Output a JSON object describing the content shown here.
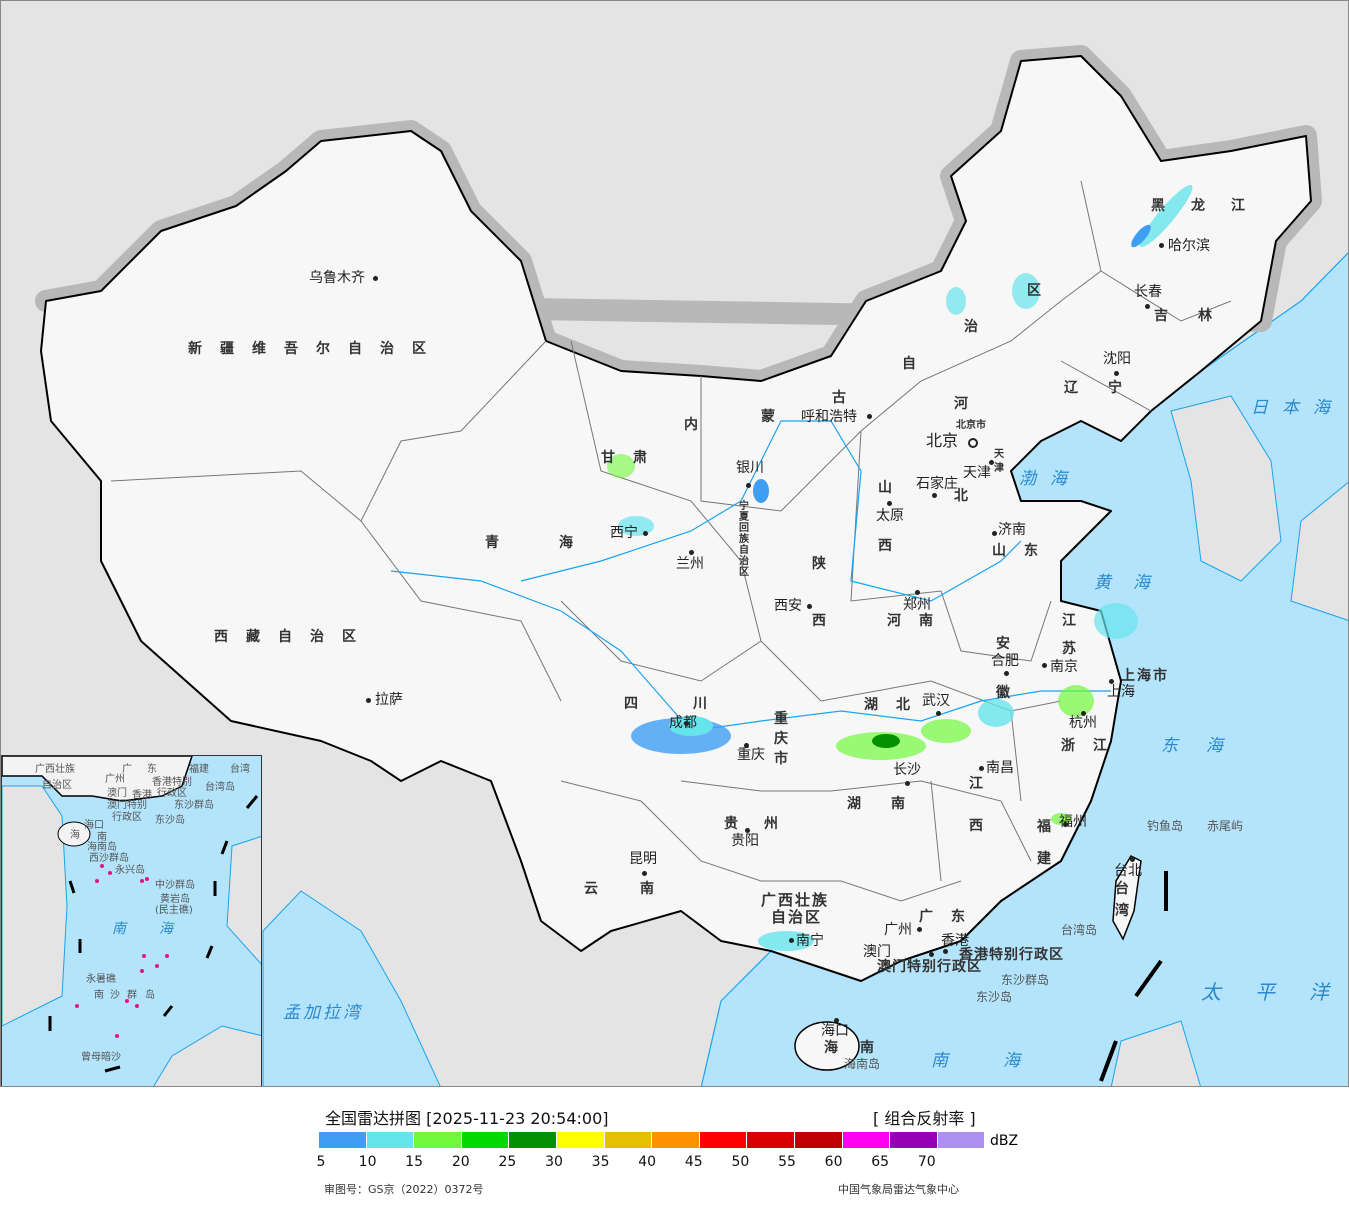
{
  "legend": {
    "title": "全国雷达拼图 [2025-11-23 20:54:00]",
    "product": "[ 组合反射率 ]",
    "unit": "dBZ",
    "colors": [
      "#3f9ef2",
      "#66e4ec",
      "#70f83c",
      "#00d800",
      "#009000",
      "#ffff00",
      "#e6c000",
      "#ff9000",
      "#ff0000",
      "#d80000",
      "#c00000",
      "#ff00f0",
      "#9600b4",
      "#ad8fef"
    ],
    "ticks": [
      "5",
      "10",
      "15",
      "20",
      "25",
      "30",
      "35",
      "40",
      "45",
      "50",
      "55",
      "60",
      "65",
      "70"
    ],
    "review_number": "审图号：GS京（2022）0372号",
    "source": "中国气象局雷达气象中心"
  },
  "map_colors": {
    "land_other": "#e4e4e4",
    "china": "#f7f7f7",
    "ocean": "#b3e4fb",
    "rivers": "#1aa3ee",
    "border": "#000000"
  },
  "cities": [
    "乌鲁木齐",
    "拉萨",
    "西宁",
    "兰州",
    "银川",
    "呼和浩特",
    "北京",
    "天津",
    "石家庄",
    "太原",
    "济南",
    "郑州",
    "西安",
    "合肥",
    "南京",
    "上海",
    "杭州",
    "武汉",
    "成都",
    "重庆",
    "长沙",
    "南昌",
    "福州",
    "贵阳",
    "昆明",
    "南宁",
    "广州",
    "澳门",
    "香港",
    "海口",
    "沈阳",
    "长春",
    "哈尔滨",
    "台北"
  ],
  "provinces": [
    "新疆维吾尔自治区",
    "西藏自治区",
    "青海",
    "甘肃",
    "内",
    "蒙",
    "古",
    "自",
    "治",
    "区",
    "黑龙江",
    "吉林",
    "辽宁",
    "河",
    "北",
    "山",
    "西",
    "山东",
    "河南",
    "陕",
    "西",
    "四川",
    "重庆市",
    "湖北",
    "湖南",
    "江",
    "西",
    "安",
    "徽",
    "江",
    "苏",
    "浙江",
    "福",
    "建",
    "贵州",
    "云南",
    "广西壮族",
    "自治区",
    "广东",
    "海南",
    "台",
    "湾",
    "宁夏回族自治区",
    "香港特别行政区",
    "澳门特别行政区",
    "上海市",
    "北京市",
    "天津"
  ],
  "seas": [
    "日本海",
    "渤海",
    "黄海",
    "东海",
    "太平洋",
    "南海",
    "孟加拉湾"
  ],
  "islands": [
    "钓鱼岛",
    "赤尾屿",
    "台湾岛",
    "东沙群岛",
    "东沙岛",
    "海南岛"
  ],
  "inset": {
    "labels": [
      "广西壮族",
      "自治区",
      "广",
      "东",
      "福建",
      "台湾",
      "广州",
      "澳门",
      "香港",
      "香港特别",
      "行政区",
      "澳门特别",
      "行政区",
      "台湾岛",
      "东沙群岛",
      "东沙岛",
      "海口",
      "海",
      "南",
      "海南岛",
      "西沙群岛",
      "永兴岛",
      "中沙群岛",
      "黄岩岛",
      "(民主礁)",
      "南",
      "海",
      "永暑礁",
      "南",
      "沙",
      "群",
      "岛",
      "曾母暗沙"
    ]
  }
}
